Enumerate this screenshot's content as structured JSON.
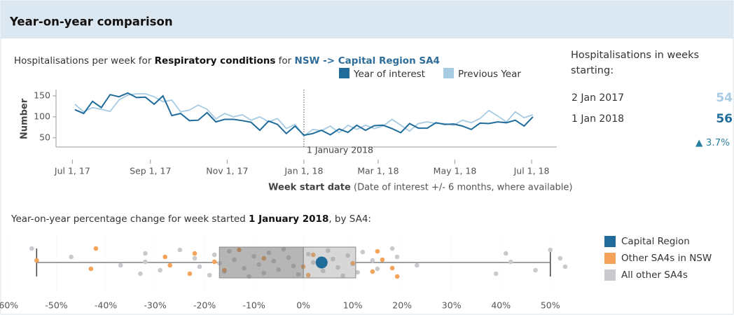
{
  "header": {
    "title": "Year-on-year comparison"
  },
  "summary": {
    "title": "Hospitalisations in weeks starting:",
    "rows": [
      {
        "label": "2 Jan 2017",
        "value": 54
      },
      {
        "label": "1 Jan 2018",
        "value": 56
      }
    ],
    "change": "▲ 3.7%"
  },
  "chart_data": [
    {
      "type": "line",
      "subtitle": [
        "Hospitalisations per week for ",
        "Respiratory conditions",
        " for ",
        "NSW -> Capital Region SA4"
      ],
      "ylabel": "Number",
      "xlabel": "Week start date",
      "xlabel_note": "(Date of interest +/- 6 months, where available)",
      "annotation": {
        "x": "2018-01-01",
        "text": "1 January 2018"
      },
      "x": [
        "2017-07-03",
        "2017-07-10",
        "2017-07-17",
        "2017-07-24",
        "2017-07-31",
        "2017-08-07",
        "2017-08-14",
        "2017-08-21",
        "2017-08-28",
        "2017-09-04",
        "2017-09-11",
        "2017-09-18",
        "2017-09-25",
        "2017-10-02",
        "2017-10-09",
        "2017-10-16",
        "2017-10-23",
        "2017-10-30",
        "2017-11-06",
        "2017-11-13",
        "2017-11-20",
        "2017-11-27",
        "2017-12-04",
        "2017-12-11",
        "2017-12-18",
        "2017-12-25",
        "2018-01-01",
        "2018-01-08",
        "2018-01-15",
        "2018-01-22",
        "2018-01-29",
        "2018-02-05",
        "2018-02-12",
        "2018-02-19",
        "2018-02-26",
        "2018-03-05",
        "2018-03-12",
        "2018-03-19",
        "2018-03-26",
        "2018-04-02",
        "2018-04-09",
        "2018-04-16",
        "2018-04-23",
        "2018-04-30",
        "2018-05-07",
        "2018-05-14",
        "2018-05-21",
        "2018-05-28",
        "2018-06-04",
        "2018-06-11",
        "2018-06-18",
        "2018-06-25",
        "2018-07-02"
      ],
      "series": [
        {
          "name": "Previous Year",
          "color": "#a6cbe3",
          "values": [
            130,
            112,
            122,
            118,
            113,
            140,
            152,
            155,
            155,
            148,
            136,
            140,
            112,
            116,
            128,
            118,
            95,
            108,
            100,
            105,
            92,
            100,
            88,
            96,
            72,
            82,
            54,
            70,
            67,
            78,
            62,
            80,
            70,
            80,
            72,
            78,
            94,
            80,
            66,
            84,
            88,
            84,
            84,
            80,
            92,
            86,
            96,
            115,
            102,
            88,
            112,
            98,
            105
          ]
        },
        {
          "name": "Year of interest",
          "color": "#1f6b9a",
          "values": [
            117,
            108,
            137,
            122,
            153,
            148,
            157,
            146,
            147,
            130,
            150,
            103,
            108,
            91,
            92,
            110,
            88,
            94,
            94,
            91,
            87,
            68,
            90,
            82,
            60,
            78,
            56,
            60,
            68,
            57,
            71,
            63,
            80,
            68,
            79,
            80,
            72,
            62,
            84,
            73,
            73,
            86,
            82,
            83,
            78,
            70,
            85,
            84,
            88,
            86,
            92,
            78,
            100
          ]
        }
      ],
      "xlim": [
        "2017-06-18",
        "2018-07-21"
      ],
      "xticks": [
        {
          "value": "2017-07-01",
          "label": "Jul 1, 17"
        },
        {
          "value": "2017-09-01",
          "label": "Sep 1, 17"
        },
        {
          "value": "2017-11-01",
          "label": "Nov 1, 17"
        },
        {
          "value": "2018-01-01",
          "label": "Jan 1, 18"
        },
        {
          "value": "2018-03-01",
          "label": "Mar 1, 18"
        },
        {
          "value": "2018-05-01",
          "label": "May 1, 18"
        },
        {
          "value": "2018-07-01",
          "label": "Jul 1, 18"
        }
      ],
      "ylim": [
        28,
        165
      ],
      "yticks": [
        50,
        100,
        150
      ]
    },
    {
      "type": "box",
      "subtitle": [
        "Year-on-year percentage change for week started ",
        "1 January 2018",
        ", by SA4:"
      ],
      "box": {
        "min": -54,
        "q1": -17,
        "median": 0,
        "q3": 10.6,
        "max": 50
      },
      "series": [
        {
          "name": "All other SA4s",
          "color": "#c9c9ce",
          "values": [
            -55,
            -47,
            -37,
            -33,
            -32,
            -32,
            -29,
            -25,
            -22,
            -21,
            -19,
            -18,
            -17,
            -16,
            -15,
            -14,
            -12,
            -11,
            -10,
            -9,
            -8,
            -7,
            -6,
            -5,
            -4,
            -3,
            -2,
            -1,
            1,
            2,
            4,
            5,
            6,
            7,
            8,
            9,
            10,
            11,
            12,
            14,
            15,
            18,
            19,
            23,
            39,
            41,
            42,
            47,
            50,
            52,
            53
          ]
        },
        {
          "name": "Other SA4s in NSW",
          "color": "#f5a35a",
          "values": [
            -54,
            -43,
            -42,
            -28,
            -27,
            -23,
            -22,
            -18,
            -16,
            -13,
            -8,
            0,
            1,
            2,
            10,
            14,
            15,
            16,
            18,
            19
          ]
        },
        {
          "name": "Capital Region",
          "color": "#1f6b9a",
          "values": [
            3.7
          ]
        }
      ],
      "xlim": [
        -60,
        55
      ],
      "xticks": [
        {
          "value": -60,
          "label": "-60%"
        },
        {
          "value": -50,
          "label": "-50%"
        },
        {
          "value": -40,
          "label": "-40%"
        },
        {
          "value": -30,
          "label": "-30%"
        },
        {
          "value": -20,
          "label": "-20%"
        },
        {
          "value": -10,
          "label": "-10%"
        },
        {
          "value": 0,
          "label": "0%"
        },
        {
          "value": 10,
          "label": "10%"
        },
        {
          "value": 20,
          "label": "20%"
        },
        {
          "value": 30,
          "label": "30%"
        },
        {
          "value": 40,
          "label": "40%"
        },
        {
          "value": 50,
          "label": "50%"
        }
      ]
    }
  ]
}
